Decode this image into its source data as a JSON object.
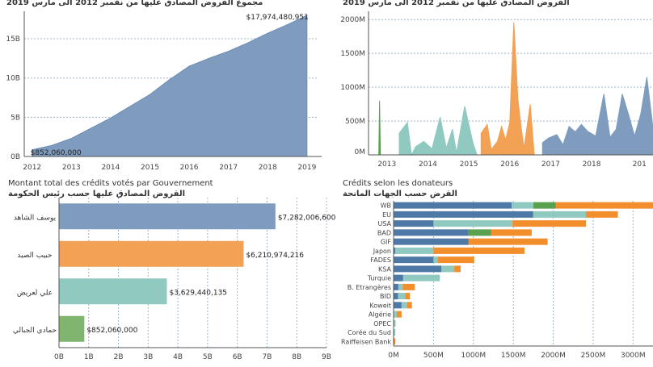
{
  "chart_data": [
    {
      "id": "cumulative",
      "type": "area",
      "title": "مجموع القروض المصادق عليها من نفمبر 2012 الى مارس 2019",
      "x_ticks": [
        "2012",
        "2013",
        "2014",
        "2015",
        "2016",
        "2017",
        "2018",
        "2019"
      ],
      "y_ticks": [
        "0B",
        "5B",
        "10B",
        "15B"
      ],
      "ylim": [
        0,
        18500000000
      ],
      "xlim": [
        2011.8,
        2019.25
      ],
      "x": [
        2012.0,
        2012.5,
        2013.0,
        2013.5,
        2014.0,
        2014.5,
        2015.0,
        2015.5,
        2016.0,
        2016.5,
        2017.0,
        2017.5,
        2018.0,
        2018.5,
        2019.0
      ],
      "y": [
        852060000,
        1400000000,
        2300000000,
        3600000000,
        4900000000,
        6400000000,
        7900000000,
        9800000000,
        11500000000,
        12500000000,
        13400000000,
        14500000000,
        15700000000,
        16800000000,
        17974480951
      ],
      "start_label": "$852,060,000",
      "end_label": "$17,974,480,951",
      "color": "#7f9cbf",
      "grid": "horizontal dashed"
    },
    {
      "id": "timeline",
      "type": "area",
      "title": "القروض المصادق عليها من نفمبر 2012 الى مارس 2019",
      "x_ticks": [
        "2013",
        "2014",
        "2015",
        "2016",
        "2017",
        "2018",
        "201"
      ],
      "y_ticks": [
        "0M",
        "500M",
        "1000M",
        "1500M",
        "2000M"
      ],
      "ylim": [
        0,
        2050
      ],
      "xlim": [
        2012.55,
        2019.5
      ],
      "unit": "M",
      "series": [
        {
          "color": "#59a14f",
          "x": [
            2012.8,
            2012.82,
            2012.84
          ],
          "y": [
            0,
            800,
            0
          ]
        },
        {
          "color": "#8fc9bf",
          "x": [
            2013.3,
            2013.5,
            2013.6,
            2013.7,
            2013.9,
            2014.1,
            2014.3,
            2014.45,
            2014.6,
            2014.7,
            2014.9,
            2015.1,
            2015.2
          ],
          "y": [
            320,
            480,
            0,
            120,
            200,
            90,
            560,
            100,
            380,
            30,
            720,
            180,
            0
          ]
        },
        {
          "color": "#f2a155",
          "x": [
            2015.3,
            2015.45,
            2015.55,
            2015.7,
            2015.8,
            2015.9,
            2016.0,
            2016.1,
            2016.2,
            2016.28,
            2016.35,
            2016.5,
            2016.6
          ],
          "y": [
            320,
            450,
            80,
            200,
            420,
            220,
            480,
            1960,
            820,
            400,
            100,
            750,
            0
          ]
        },
        {
          "color": "#7f9cbf",
          "x": [
            2016.8,
            2016.95,
            2017.15,
            2017.3,
            2017.45,
            2017.6,
            2017.75,
            2017.9,
            2018.1,
            2018.3,
            2018.45,
            2018.6,
            2018.75,
            2018.9,
            2019.05,
            2019.2,
            2019.35,
            2019.5
          ],
          "y": [
            180,
            250,
            300,
            150,
            420,
            340,
            450,
            350,
            280,
            900,
            260,
            380,
            900,
            600,
            280,
            600,
            1150,
            400
          ]
        }
      ],
      "grid": "horizontal dashed"
    },
    {
      "id": "by-government",
      "type": "bar",
      "title": "Montant total des crédits votés par Gouvernement",
      "subtitle": "القروض المصادق عليها حسب رئيس الحكومة",
      "categories": [
        "يوسف الشاهد",
        "حبيب الصيد",
        "علي لعريض",
        "حمادي الجبالي"
      ],
      "values": [
        7282006600,
        6210974216,
        3629440135,
        852060000
      ],
      "value_labels": [
        "$7,282,006,600",
        "$6,210,974,216",
        "$3,629,440,135",
        "$852,060,000"
      ],
      "colors": [
        "#7f9cbf",
        "#f2a155",
        "#8fc9bf",
        "#7fb56e"
      ],
      "x_ticks": [
        "0B",
        "1B",
        "2B",
        "3B",
        "4B",
        "5B",
        "6B",
        "7B",
        "8B",
        "9B"
      ],
      "xlim": [
        0,
        9000000000
      ],
      "grid": "vertical dashed"
    },
    {
      "id": "by-donor",
      "type": "bar",
      "title": "Crédits selon les donateurs",
      "subtitle": "القرض حسب الجهات المانحة",
      "categories": [
        "WB",
        "EU",
        "USA",
        "BAD",
        "GIF",
        "Japon",
        "FADES",
        "KSA",
        "Turquie",
        "B. Etrangères",
        "BID",
        "Koweit",
        "Algérie",
        "OPEC",
        "Corée du Sud",
        "Raiffeisen Bank"
      ],
      "series": [
        {
          "color": "#4e79a7",
          "values": [
            1480,
            1750,
            500,
            940,
            940,
            20,
            500,
            600,
            120,
            60,
            55,
            100,
            0,
            0,
            0,
            0
          ]
        },
        {
          "color": "#8fc9bf",
          "values": [
            270,
            660,
            990,
            0,
            0,
            480,
            50,
            160,
            460,
            55,
            90,
            70,
            40,
            25,
            20,
            0
          ]
        },
        {
          "color": "#59a14f",
          "values": [
            280,
            0,
            0,
            280,
            0,
            0,
            0,
            0,
            0,
            0,
            0,
            0,
            0,
            0,
            0,
            0
          ]
        },
        {
          "color": "#f28e2b",
          "values": [
            1260,
            400,
            920,
            510,
            990,
            1140,
            460,
            80,
            0,
            150,
            60,
            60,
            60,
            0,
            0,
            20
          ]
        }
      ],
      "x_ticks": [
        "0M",
        "500M",
        "1000M",
        "1500M",
        "2000M",
        "2500M",
        "3000M"
      ],
      "xlim": [
        0,
        3250
      ],
      "unit": "M",
      "grid": "vertical dashed"
    }
  ]
}
